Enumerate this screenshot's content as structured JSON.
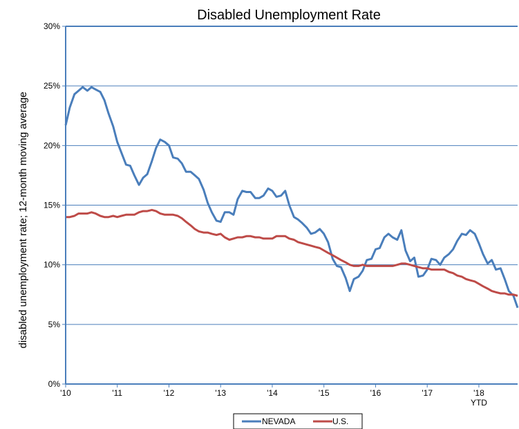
{
  "chart_data": {
    "type": "line",
    "title": "Disabled Unemployment Rate",
    "xlabel": "",
    "ylabel": "disabled unemployment  rate; 12-month moving average",
    "ylim": [
      0,
      30
    ],
    "xlim": [
      2010,
      2018.75
    ],
    "yticks": [
      "0%",
      "5%",
      "10%",
      "15%",
      "20%",
      "25%",
      "30%"
    ],
    "xticks": [
      {
        "value": 2010,
        "label": "'10"
      },
      {
        "value": 2011,
        "label": "'11"
      },
      {
        "value": 2012,
        "label": "'12"
      },
      {
        "value": 2013,
        "label": "'13"
      },
      {
        "value": 2014,
        "label": "'14"
      },
      {
        "value": 2015,
        "label": "'15"
      },
      {
        "value": 2016,
        "label": "'16"
      },
      {
        "value": 2017,
        "label": "'17"
      },
      {
        "value": 2018,
        "label": "'18",
        "sublabel": "YTD"
      }
    ],
    "grid": "horizontal",
    "legend_position": "bottom",
    "series": [
      {
        "name": "NEVADA",
        "color": "#4a7ebb",
        "points": [
          [
            2010.0,
            21.7
          ],
          [
            2010.08,
            23.2
          ],
          [
            2010.17,
            24.3
          ],
          [
            2010.25,
            24.6
          ],
          [
            2010.33,
            24.9
          ],
          [
            2010.42,
            24.6
          ],
          [
            2010.5,
            24.9
          ],
          [
            2010.58,
            24.7
          ],
          [
            2010.67,
            24.5
          ],
          [
            2010.75,
            23.8
          ],
          [
            2010.83,
            22.7
          ],
          [
            2010.92,
            21.6
          ],
          [
            2011.0,
            20.3
          ],
          [
            2011.08,
            19.4
          ],
          [
            2011.17,
            18.4
          ],
          [
            2011.25,
            18.3
          ],
          [
            2011.33,
            17.5
          ],
          [
            2011.42,
            16.7
          ],
          [
            2011.5,
            17.3
          ],
          [
            2011.58,
            17.6
          ],
          [
            2011.67,
            18.7
          ],
          [
            2011.75,
            19.8
          ],
          [
            2011.83,
            20.5
          ],
          [
            2011.92,
            20.3
          ],
          [
            2012.0,
            20.0
          ],
          [
            2012.08,
            19.0
          ],
          [
            2012.17,
            18.9
          ],
          [
            2012.25,
            18.5
          ],
          [
            2012.33,
            17.8
          ],
          [
            2012.42,
            17.8
          ],
          [
            2012.5,
            17.5
          ],
          [
            2012.58,
            17.2
          ],
          [
            2012.67,
            16.3
          ],
          [
            2012.75,
            15.2
          ],
          [
            2012.83,
            14.4
          ],
          [
            2012.92,
            13.7
          ],
          [
            2013.0,
            13.6
          ],
          [
            2013.08,
            14.4
          ],
          [
            2013.17,
            14.4
          ],
          [
            2013.25,
            14.2
          ],
          [
            2013.33,
            15.5
          ],
          [
            2013.42,
            16.2
          ],
          [
            2013.5,
            16.1
          ],
          [
            2013.58,
            16.1
          ],
          [
            2013.67,
            15.6
          ],
          [
            2013.75,
            15.6
          ],
          [
            2013.83,
            15.8
          ],
          [
            2013.92,
            16.4
          ],
          [
            2014.0,
            16.2
          ],
          [
            2014.08,
            15.7
          ],
          [
            2014.17,
            15.8
          ],
          [
            2014.25,
            16.2
          ],
          [
            2014.33,
            15.0
          ],
          [
            2014.42,
            14.0
          ],
          [
            2014.5,
            13.8
          ],
          [
            2014.58,
            13.5
          ],
          [
            2014.67,
            13.1
          ],
          [
            2014.75,
            12.6
          ],
          [
            2014.83,
            12.7
          ],
          [
            2014.92,
            13.0
          ],
          [
            2015.0,
            12.6
          ],
          [
            2015.08,
            11.9
          ],
          [
            2015.17,
            10.5
          ],
          [
            2015.25,
            9.9
          ],
          [
            2015.33,
            9.8
          ],
          [
            2015.42,
            8.9
          ],
          [
            2015.5,
            7.8
          ],
          [
            2015.58,
            8.8
          ],
          [
            2015.67,
            9.0
          ],
          [
            2015.75,
            9.5
          ],
          [
            2015.83,
            10.4
          ],
          [
            2015.92,
            10.5
          ],
          [
            2016.0,
            11.3
          ],
          [
            2016.08,
            11.4
          ],
          [
            2016.17,
            12.3
          ],
          [
            2016.25,
            12.6
          ],
          [
            2016.33,
            12.3
          ],
          [
            2016.42,
            12.1
          ],
          [
            2016.5,
            12.9
          ],
          [
            2016.58,
            11.2
          ],
          [
            2016.67,
            10.3
          ],
          [
            2016.75,
            10.6
          ],
          [
            2016.83,
            9.0
          ],
          [
            2016.92,
            9.1
          ],
          [
            2017.0,
            9.6
          ],
          [
            2017.08,
            10.5
          ],
          [
            2017.17,
            10.4
          ],
          [
            2017.25,
            10.0
          ],
          [
            2017.33,
            10.6
          ],
          [
            2017.42,
            10.9
          ],
          [
            2017.5,
            11.3
          ],
          [
            2017.58,
            12.0
          ],
          [
            2017.67,
            12.6
          ],
          [
            2017.75,
            12.5
          ],
          [
            2017.83,
            12.9
          ],
          [
            2017.92,
            12.6
          ],
          [
            2018.0,
            11.8
          ],
          [
            2018.08,
            10.9
          ],
          [
            2018.17,
            10.1
          ],
          [
            2018.25,
            10.4
          ],
          [
            2018.33,
            9.6
          ],
          [
            2018.42,
            9.7
          ],
          [
            2018.5,
            8.8
          ],
          [
            2018.58,
            7.8
          ],
          [
            2018.67,
            7.4
          ],
          [
            2018.75,
            6.4
          ]
        ]
      },
      {
        "name": "U.S.",
        "color": "#be4b48",
        "points": [
          [
            2010.0,
            14.0
          ],
          [
            2010.08,
            14.0
          ],
          [
            2010.17,
            14.1
          ],
          [
            2010.25,
            14.3
          ],
          [
            2010.33,
            14.3
          ],
          [
            2010.42,
            14.3
          ],
          [
            2010.5,
            14.4
          ],
          [
            2010.58,
            14.3
          ],
          [
            2010.67,
            14.1
          ],
          [
            2010.75,
            14.0
          ],
          [
            2010.83,
            14.0
          ],
          [
            2010.92,
            14.1
          ],
          [
            2011.0,
            14.0
          ],
          [
            2011.08,
            14.1
          ],
          [
            2011.17,
            14.2
          ],
          [
            2011.25,
            14.2
          ],
          [
            2011.33,
            14.2
          ],
          [
            2011.42,
            14.4
          ],
          [
            2011.5,
            14.5
          ],
          [
            2011.58,
            14.5
          ],
          [
            2011.67,
            14.6
          ],
          [
            2011.75,
            14.5
          ],
          [
            2011.83,
            14.3
          ],
          [
            2011.92,
            14.2
          ],
          [
            2012.0,
            14.2
          ],
          [
            2012.08,
            14.2
          ],
          [
            2012.17,
            14.1
          ],
          [
            2012.25,
            13.9
          ],
          [
            2012.33,
            13.6
          ],
          [
            2012.42,
            13.3
          ],
          [
            2012.5,
            13.0
          ],
          [
            2012.58,
            12.8
          ],
          [
            2012.67,
            12.7
          ],
          [
            2012.75,
            12.7
          ],
          [
            2012.83,
            12.6
          ],
          [
            2012.92,
            12.5
          ],
          [
            2013.0,
            12.6
          ],
          [
            2013.08,
            12.3
          ],
          [
            2013.17,
            12.1
          ],
          [
            2013.25,
            12.2
          ],
          [
            2013.33,
            12.3
          ],
          [
            2013.42,
            12.3
          ],
          [
            2013.5,
            12.4
          ],
          [
            2013.58,
            12.4
          ],
          [
            2013.67,
            12.3
          ],
          [
            2013.75,
            12.3
          ],
          [
            2013.83,
            12.2
          ],
          [
            2013.92,
            12.2
          ],
          [
            2014.0,
            12.2
          ],
          [
            2014.08,
            12.4
          ],
          [
            2014.17,
            12.4
          ],
          [
            2014.25,
            12.4
          ],
          [
            2014.33,
            12.2
          ],
          [
            2014.42,
            12.1
          ],
          [
            2014.5,
            11.9
          ],
          [
            2014.58,
            11.8
          ],
          [
            2014.67,
            11.7
          ],
          [
            2014.75,
            11.6
          ],
          [
            2014.83,
            11.5
          ],
          [
            2014.92,
            11.4
          ],
          [
            2015.0,
            11.2
          ],
          [
            2015.08,
            11.0
          ],
          [
            2015.17,
            10.8
          ],
          [
            2015.25,
            10.6
          ],
          [
            2015.33,
            10.4
          ],
          [
            2015.42,
            10.2
          ],
          [
            2015.5,
            10.0
          ],
          [
            2015.58,
            9.9
          ],
          [
            2015.67,
            9.9
          ],
          [
            2015.75,
            10.0
          ],
          [
            2015.83,
            9.9
          ],
          [
            2015.92,
            9.9
          ],
          [
            2016.0,
            9.9
          ],
          [
            2016.08,
            9.9
          ],
          [
            2016.17,
            9.9
          ],
          [
            2016.25,
            9.9
          ],
          [
            2016.33,
            9.9
          ],
          [
            2016.42,
            10.0
          ],
          [
            2016.5,
            10.1
          ],
          [
            2016.58,
            10.1
          ],
          [
            2016.67,
            10.0
          ],
          [
            2016.75,
            9.9
          ],
          [
            2016.83,
            9.8
          ],
          [
            2016.92,
            9.7
          ],
          [
            2017.0,
            9.7
          ],
          [
            2017.08,
            9.6
          ],
          [
            2017.17,
            9.6
          ],
          [
            2017.25,
            9.6
          ],
          [
            2017.33,
            9.6
          ],
          [
            2017.42,
            9.4
          ],
          [
            2017.5,
            9.3
          ],
          [
            2017.58,
            9.1
          ],
          [
            2017.67,
            9.0
          ],
          [
            2017.75,
            8.8
          ],
          [
            2017.83,
            8.7
          ],
          [
            2017.92,
            8.6
          ],
          [
            2018.0,
            8.4
          ],
          [
            2018.08,
            8.2
          ],
          [
            2018.17,
            8.0
          ],
          [
            2018.25,
            7.8
          ],
          [
            2018.33,
            7.7
          ],
          [
            2018.42,
            7.6
          ],
          [
            2018.5,
            7.6
          ],
          [
            2018.58,
            7.5
          ],
          [
            2018.67,
            7.5
          ],
          [
            2018.75,
            7.4
          ]
        ]
      }
    ]
  }
}
